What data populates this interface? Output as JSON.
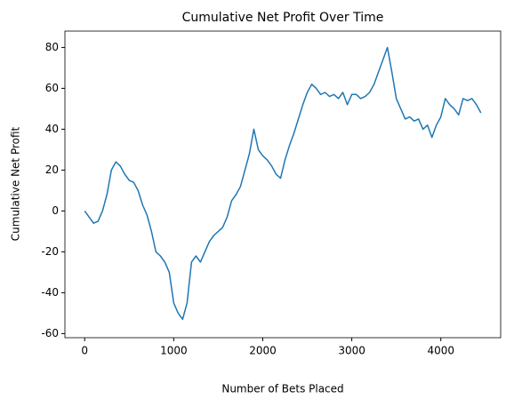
{
  "chart_data": {
    "type": "line",
    "title": "Cumulative Net Profit Over Time",
    "x_label": "Number of Bets Placed",
    "y_label": "Cumulative Net Profit",
    "x": [
      0,
      50,
      100,
      150,
      200,
      250,
      300,
      350,
      400,
      450,
      500,
      550,
      600,
      650,
      700,
      750,
      800,
      850,
      900,
      950,
      1000,
      1050,
      1100,
      1150,
      1200,
      1250,
      1300,
      1350,
      1400,
      1450,
      1500,
      1550,
      1600,
      1650,
      1700,
      1750,
      1800,
      1850,
      1900,
      1950,
      2000,
      2050,
      2100,
      2150,
      2200,
      2250,
      2300,
      2350,
      2400,
      2450,
      2500,
      2550,
      2600,
      2650,
      2700,
      2750,
      2800,
      2850,
      2900,
      2950,
      3000,
      3050,
      3100,
      3150,
      3200,
      3250,
      3300,
      3350,
      3400,
      3450,
      3500,
      3550,
      3600,
      3650,
      3700,
      3750,
      3800,
      3850,
      3900,
      3950,
      4000,
      4050,
      4100,
      4150,
      4200,
      4250,
      4300,
      4350,
      4400,
      4450
    ],
    "series": [
      {
        "name": "Cumulative Net Profit",
        "color": "#1f77b4",
        "values": [
          0,
          -3,
          -6,
          -5,
          0,
          8,
          20,
          24,
          22,
          18,
          15,
          14,
          10,
          3,
          -2,
          -10,
          -20,
          -22,
          -25,
          -30,
          -45,
          -50,
          -53,
          -45,
          -25,
          -22,
          -25,
          -20,
          -15,
          -12,
          -10,
          -8,
          -3,
          5,
          8,
          12,
          20,
          28,
          40,
          30,
          27,
          25,
          22,
          18,
          16,
          25,
          32,
          38,
          45,
          52,
          58,
          62,
          60,
          57,
          58,
          56,
          57,
          55,
          58,
          52,
          57,
          57,
          55,
          56,
          58,
          62,
          68,
          74,
          80,
          68,
          55,
          50,
          45,
          46,
          44,
          45,
          40,
          42,
          36,
          42,
          46,
          55,
          52,
          50,
          47,
          55,
          54,
          55,
          52,
          48
        ]
      }
    ],
    "xlim": [
      -222,
      4672
    ],
    "ylim": [
      -62,
      88
    ],
    "xticks": [
      0,
      1000,
      2000,
      3000,
      4000
    ],
    "yticks": [
      -60,
      -40,
      -20,
      0,
      20,
      40,
      60,
      80
    ],
    "grid": false
  }
}
